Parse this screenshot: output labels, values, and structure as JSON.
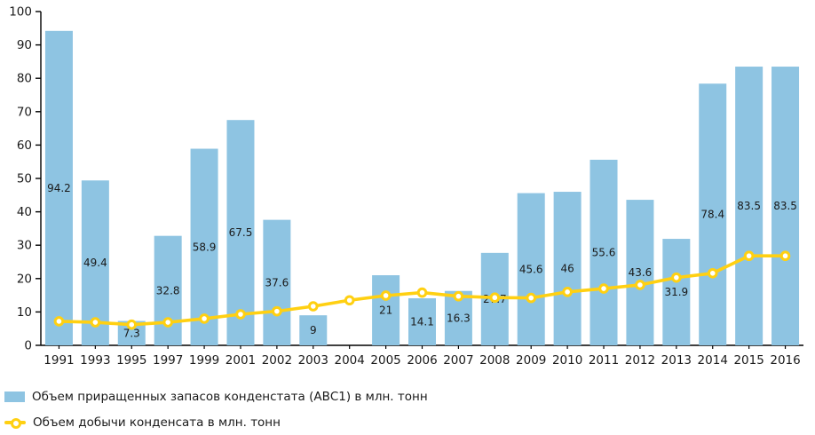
{
  "chart_data": {
    "type": "bar",
    "combo": "bar+line",
    "title": "",
    "xlabel": "",
    "ylabel": "",
    "ylim": [
      0,
      100
    ],
    "y_tick_step": 10,
    "grid": false,
    "legend_position": "bottom-left",
    "background_color": "#ffffff",
    "axis_color": "#000000",
    "text_color": "#1a1a1a",
    "categories": [
      "1991",
      "1993",
      "1995",
      "1997",
      "1999",
      "2001",
      "2002",
      "2003",
      "2004",
      "2005",
      "2006",
      "2007",
      "2008",
      "2009",
      "2010",
      "2011",
      "2012",
      "2013",
      "2014",
      "2015",
      "2016"
    ],
    "series": [
      {
        "name": "Объем приращенных запасов конденстата (АВС1) в млн. тонн",
        "type": "bar",
        "color": "#8ec4e2",
        "values": [
          94.2,
          49.4,
          7.3,
          32.8,
          58.9,
          67.5,
          37.6,
          9,
          null,
          21,
          14.1,
          16.3,
          27.7,
          45.6,
          46,
          55.6,
          43.6,
          31.9,
          78.4,
          83.5,
          83.5
        ],
        "data_labels": [
          "94.2",
          "49.4",
          "7.3",
          "32.8",
          "58.9",
          "67.5",
          "37.6",
          "9",
          "",
          "21",
          "14.1",
          "16.3",
          "27.7",
          "45.6",
          "46",
          "55.6",
          "43.6",
          "31.9",
          "78.4",
          "83.5",
          "83.5"
        ]
      },
      {
        "name": "Объем добычи конденсата в млн. тонн",
        "type": "line",
        "color": "#ffd012",
        "marker": "circle-ring-white-center",
        "values": [
          7.2,
          6.9,
          6.2,
          6.9,
          8.0,
          9.3,
          10.2,
          11.7,
          13.5,
          14.9,
          15.8,
          14.7,
          14.3,
          14.2,
          16.0,
          17.0,
          18.1,
          20.3,
          21.6,
          26.8,
          26.8
        ]
      }
    ]
  },
  "legend": {
    "items": [
      {
        "label": "Объем приращенных запасов конденстата (АВС1) в млн. тонн",
        "swatch": "bar"
      },
      {
        "label": "Объем добычи конденсата в млн. тонн",
        "swatch": "line-marker"
      }
    ]
  }
}
